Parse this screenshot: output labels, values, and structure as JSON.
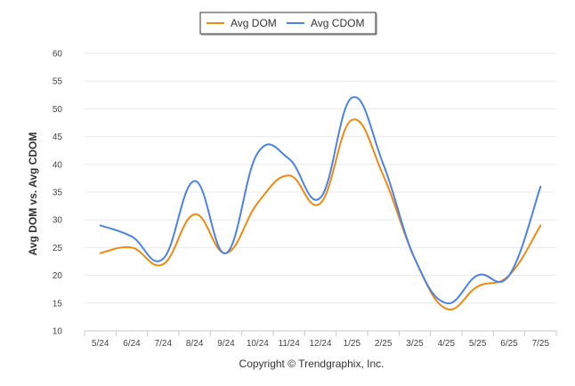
{
  "chart_data": {
    "type": "line",
    "categories": [
      "5/24",
      "6/24",
      "7/24",
      "8/24",
      "9/24",
      "10/24",
      "11/24",
      "12/24",
      "1/25",
      "2/25",
      "3/25",
      "4/25",
      "5/25",
      "6/25",
      "7/25"
    ],
    "series": [
      {
        "name": "Avg DOM",
        "color": "#ee8a12",
        "values": [
          24,
          25,
          22,
          31,
          24,
          33,
          38,
          33,
          48,
          38,
          23,
          14,
          18,
          20,
          29
        ]
      },
      {
        "name": "Avg CDOM",
        "color": "#4c82e6",
        "values": [
          29,
          27,
          23,
          37,
          24,
          42,
          41,
          34,
          52,
          40,
          23,
          15,
          20,
          20,
          36
        ]
      }
    ],
    "yticks": [
      "10",
      "15",
      "20",
      "25",
      "30",
      "35",
      "40",
      "45",
      "50",
      "55",
      "60"
    ],
    "ylim": [
      10,
      60
    ],
    "ylabel": "Avg DOM vs. Avg CDOM",
    "xlabel": "",
    "legend_position": "top-center",
    "grid": true
  },
  "credit": "Copyright © Trendgraphix, Inc."
}
